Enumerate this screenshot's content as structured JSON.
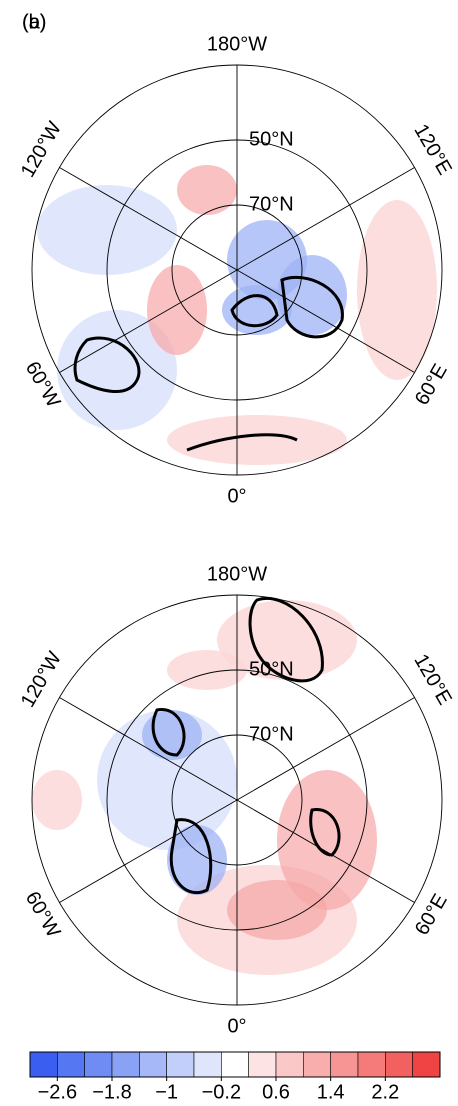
{
  "panels": [
    {
      "label": "(a)"
    },
    {
      "label": "(b)"
    }
  ],
  "meridian_labels": {
    "top": "180°W",
    "bottom": "0°",
    "upper_left": "120°W",
    "upper_right": "120°E",
    "lower_left": "60°W",
    "lower_right": "60°E"
  },
  "latitude_labels": {
    "outer": "50°N",
    "inner": "70°N"
  },
  "colorbar": {
    "lim": [
      -3,
      3
    ],
    "colors": [
      "#3a5ef0",
      "#5577f2",
      "#6e8cf4",
      "#8aa2f6",
      "#a6b8f8",
      "#c2cffa",
      "#dfe6fc",
      "#ffffff",
      "#fde3e3",
      "#fbc8c8",
      "#f9aeae",
      "#f79494",
      "#f57a7a",
      "#f36060",
      "#f04444"
    ],
    "ticks": [
      {
        "value": -2.6,
        "label": "−2.6"
      },
      {
        "value": -1.8,
        "label": "−1.8"
      },
      {
        "value": -1,
        "label": "−1"
      },
      {
        "value": -0.2,
        "label": "−0.2"
      },
      0.6,
      1.4,
      2.2
    ]
  }
}
